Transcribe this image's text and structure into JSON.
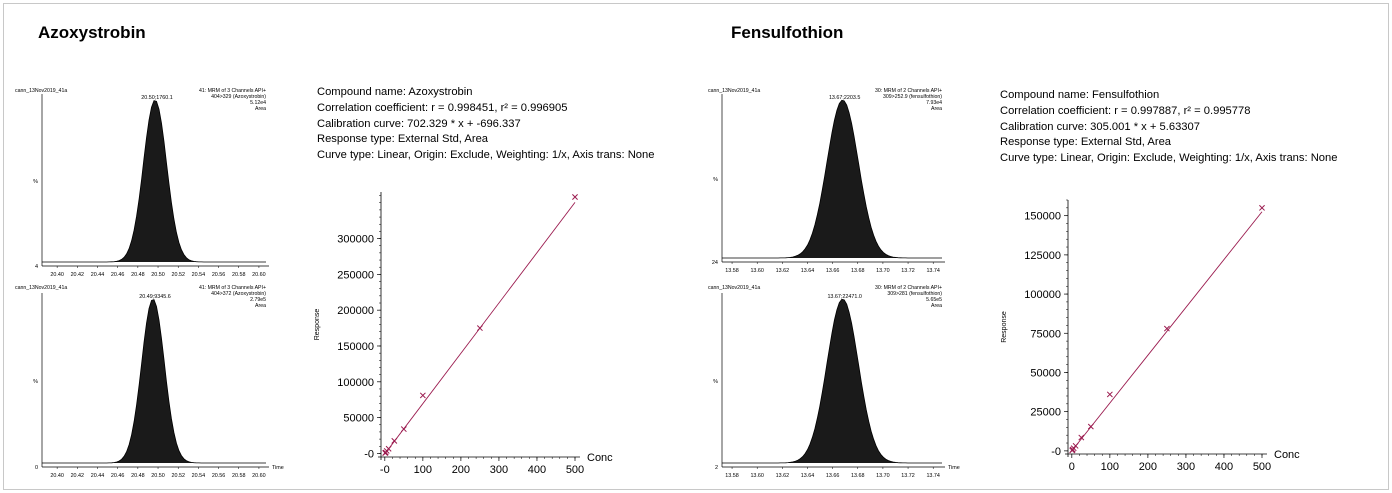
{
  "panels": [
    {
      "title": "Azoxystrobin",
      "info": [
        "Compound name: Azoxystrobin",
        "Correlation coefficient: r = 0.998451, r² = 0.996905",
        "Calibration curve: 702.329 * x + -696.337",
        "Response type: External Std, Area",
        "Curve type: Linear, Origin: Exclude, Weighting: 1/x, Axis trans: None"
      ],
      "chromatograms": [
        {
          "sample": "cann_13Nov2019_41a",
          "peak_label": "20.50;1760.1",
          "header_lines": [
            "41: MRM of 3 Channels API+",
            "404>329 (Azoxystrobin)",
            "5.12e4",
            "Area"
          ],
          "y_label": "%",
          "y_min_label": "4",
          "x_ticks": [
            "20.40",
            "20.42",
            "20.44",
            "20.46",
            "20.48",
            "20.50",
            "20.52",
            "20.54",
            "20.56",
            "20.58",
            "20.60"
          ],
          "x_axis_label": "",
          "peak": {
            "apex": 20.497,
            "sigma": 0.0115,
            "x_min": 20.385,
            "x_max": 20.607
          }
        },
        {
          "sample": "cann_13Nov2019_41a",
          "peak_label": "20.49;9345.6",
          "header_lines": [
            "41: MRM of 3 Channels API+",
            "404>372 (Azoxystrobin)",
            "2.79e5",
            "Area"
          ],
          "y_label": "%",
          "y_min_label": "0",
          "x_ticks": [
            "20.40",
            "20.42",
            "20.44",
            "20.46",
            "20.48",
            "20.50",
            "20.52",
            "20.54",
            "20.56",
            "20.58",
            "20.60"
          ],
          "x_axis_label": "Time",
          "peak": {
            "apex": 20.495,
            "sigma": 0.0113,
            "x_min": 20.385,
            "x_max": 20.607
          }
        }
      ],
      "chart_data": {
        "type": "scatter",
        "ylabel": "Response",
        "xlabel": "Conc",
        "x_ticks": [
          "-0",
          "100",
          "200",
          "300",
          "400",
          "500"
        ],
        "y_ticks": [
          "-0",
          "50000",
          "100000",
          "150000",
          "200000",
          "250000",
          "300000"
        ],
        "xlim": [
          -10,
          500
        ],
        "ylim": [
          -5000,
          365000
        ],
        "fit": {
          "slope": 702.329,
          "intercept": -696.337
        },
        "points": [
          {
            "x": 1,
            "y": 600
          },
          {
            "x": 2.5,
            "y": 1200
          },
          {
            "x": 5,
            "y": 3500
          },
          {
            "x": 10,
            "y": 6500
          },
          {
            "x": 25,
            "y": 17500
          },
          {
            "x": 50,
            "y": 34000
          },
          {
            "x": 100,
            "y": 81000
          },
          {
            "x": 250,
            "y": 175000
          },
          {
            "x": 500,
            "y": 358000
          }
        ]
      }
    },
    {
      "title": "Fensulfothion",
      "info": [
        "Compound name: Fensulfothion",
        "Correlation coefficient: r = 0.997887, r² = 0.995778",
        "Calibration curve: 305.001 * x + 5.63307",
        "Response type: External Std, Area",
        "Curve type: Linear, Origin: Exclude, Weighting: 1/x, Axis trans: None"
      ],
      "chromatograms": [
        {
          "sample": "cann_13Nov2019_41a",
          "peak_label": "13.67;2203.5",
          "header_lines": [
            "30: MRM of 2 Channels API+",
            "309>252.9 (fensulfothion)",
            "7.93e4",
            "Area"
          ],
          "y_label": "%",
          "y_min_label": "24",
          "x_ticks": [
            "13.58",
            "13.60",
            "13.62",
            "13.64",
            "13.66",
            "13.68",
            "13.70",
            "13.72",
            "13.74"
          ],
          "x_axis_label": "",
          "peak": {
            "apex": 13.668,
            "sigma": 0.0125,
            "x_min": 13.572,
            "x_max": 13.747
          }
        },
        {
          "sample": "cann_13Nov2019_41a",
          "peak_label": "13.67;22471.0",
          "header_lines": [
            "30: MRM of 2 Channels API+",
            "309>281 (fensulfothion)",
            "5.65e5",
            "Area"
          ],
          "y_label": "%",
          "y_min_label": "2",
          "x_ticks": [
            "13.58",
            "13.60",
            "13.62",
            "13.64",
            "13.66",
            "13.68",
            "13.70",
            "13.72",
            "13.74"
          ],
          "x_axis_label": "Time",
          "peak": {
            "apex": 13.668,
            "sigma": 0.0125,
            "x_min": 13.572,
            "x_max": 13.747
          }
        }
      ],
      "chart_data": {
        "type": "scatter",
        "ylabel": "Response",
        "xlabel": "Conc",
        "x_ticks": [
          "0",
          "100",
          "200",
          "300",
          "400",
          "500"
        ],
        "y_ticks": [
          "-0",
          "25000",
          "50000",
          "75000",
          "100000",
          "125000",
          "150000"
        ],
        "xlim": [
          -10,
          500
        ],
        "ylim": [
          -2000,
          160000
        ],
        "fit": {
          "slope": 305.001,
          "intercept": 5.63307
        },
        "points": [
          {
            "x": 1,
            "y": 300
          },
          {
            "x": 2.5,
            "y": 800
          },
          {
            "x": 5,
            "y": 1700
          },
          {
            "x": 10,
            "y": 3200
          },
          {
            "x": 25,
            "y": 8500
          },
          {
            "x": 50,
            "y": 15500
          },
          {
            "x": 100,
            "y": 36000
          },
          {
            "x": 250,
            "y": 78000
          },
          {
            "x": 500,
            "y": 155000
          }
        ]
      }
    }
  ]
}
